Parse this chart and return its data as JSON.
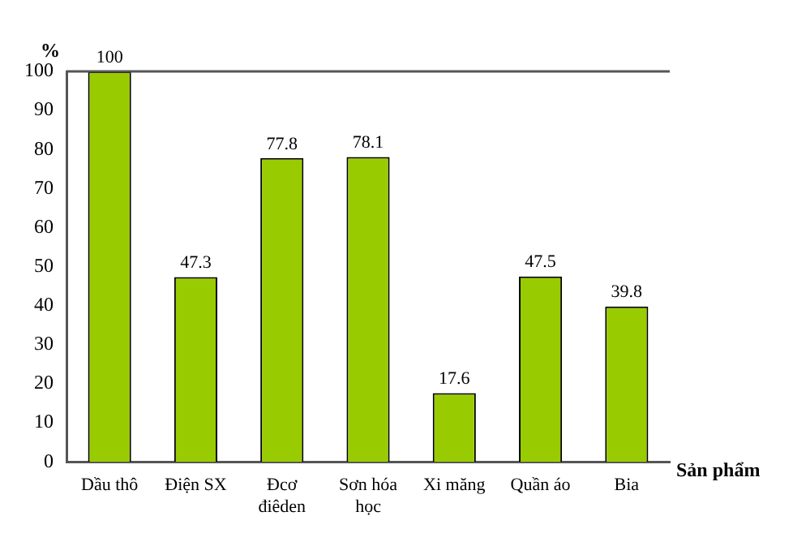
{
  "chart_data": {
    "type": "bar",
    "ylabel": "%",
    "xlabel": "Sản phẩm",
    "categories": [
      "Dầu thô",
      "Điện SX",
      "Đcơ điêden",
      "Sơn hóa học",
      "Xi măng",
      "Quần áo",
      "Bia"
    ],
    "values": [
      100,
      47.3,
      77.8,
      78.1,
      17.6,
      47.5,
      39.8
    ],
    "color": "#99cc00",
    "ylim": [
      0,
      100
    ],
    "yticks": [
      0,
      10,
      20,
      30,
      40,
      50,
      60,
      70,
      80,
      90,
      100
    ],
    "grid": false,
    "data_labels": true
  }
}
